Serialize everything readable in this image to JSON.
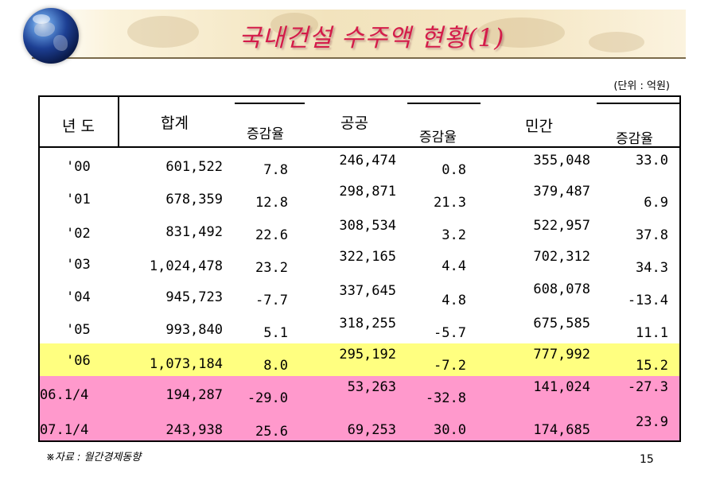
{
  "header": {
    "title": "국내건설 수주액 현황(1)"
  },
  "unit_label": "(단위 : 억원)",
  "table": {
    "headers": {
      "year": "년 도",
      "total": "합계",
      "total_change": "증감율",
      "public": "공공",
      "public_change": "증감율",
      "private": "민간",
      "private_change": "증감율"
    },
    "rows": [
      {
        "year": "'00",
        "total": "601,522",
        "total_change": "7.8",
        "public": "246,474",
        "public_change": "0.8",
        "private": "355,048",
        "private_change": "33.0",
        "highlight": "none"
      },
      {
        "year": "'01",
        "total": "678,359",
        "total_change": "12.8",
        "public": "298,871",
        "public_change": "21.3",
        "private": "379,487",
        "private_change": "6.9",
        "highlight": "none"
      },
      {
        "year": "'02",
        "total": "831,492",
        "total_change": "22.6",
        "public": "308,534",
        "public_change": "3.2",
        "private": "522,957",
        "private_change": "37.8",
        "highlight": "none"
      },
      {
        "year": "'03",
        "total": "1,024,478",
        "total_change": "23.2",
        "public": "322,165",
        "public_change": "4.4",
        "private": "702,312",
        "private_change": "34.3",
        "highlight": "none"
      },
      {
        "year": "'04",
        "total": "945,723",
        "total_change": "-7.7",
        "public": "337,645",
        "public_change": "4.8",
        "private": "608,078",
        "private_change": "-13.4",
        "highlight": "none"
      },
      {
        "year": "'05",
        "total": "993,840",
        "total_change": "5.1",
        "public": "318,255",
        "public_change": "-5.7",
        "private": "675,585",
        "private_change": "11.1",
        "highlight": "none"
      },
      {
        "year": "'06",
        "total": "1,073,184",
        "total_change": "8.0",
        "public": "295,192",
        "public_change": "-7.2",
        "private": "777,992",
        "private_change": "15.2",
        "highlight": "yellow"
      },
      {
        "year": "06.1/4",
        "total": "194,287",
        "total_change": "-29.0",
        "public": "53,263",
        "public_change": "-32.8",
        "private": "141,024",
        "private_change": "-27.3",
        "highlight": "pink"
      },
      {
        "year": "07.1/4",
        "total": "243,938",
        "total_change": "25.6",
        "public": "69,253",
        "public_change": "30.0",
        "private": "174,685",
        "private_change": "23.9",
        "highlight": "pink"
      }
    ]
  },
  "footer": {
    "source": "※자료 : 월간경제동향",
    "page_number": "15"
  },
  "colors": {
    "title": "#d41c4a",
    "highlight_yellow": "#ffff80",
    "highlight_pink": "#ff99cc"
  }
}
